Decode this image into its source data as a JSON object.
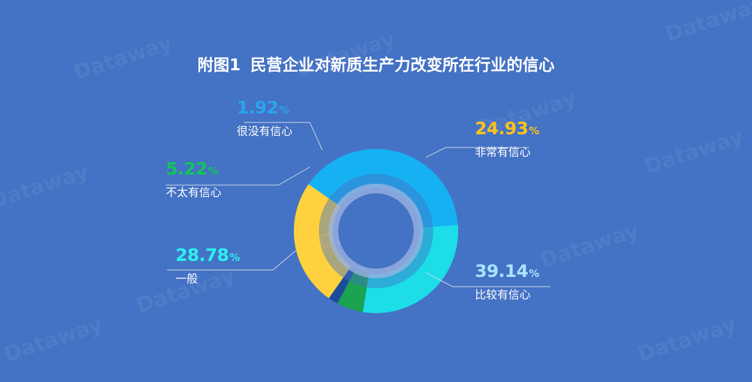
{
  "title_prefix": "附图1",
  "title_text": "民营企业对新质生产力改变所在行业的信心",
  "colors": {
    "background": "#4472c4",
    "leader": "#cfd9ec"
  },
  "chart_data": {
    "type": "pie",
    "variant": "donut",
    "title": "附图1 民营企业对新质生产力改变所在行业的信心",
    "unit": "%",
    "slices": [
      {
        "name": "非常有信心",
        "value": 24.93,
        "color": "#ffd13f",
        "label_color": "#ffc21a"
      },
      {
        "name": "比较有信心",
        "value": 39.14,
        "color": "#16b1f2",
        "label_color": "#a7e4ff"
      },
      {
        "name": "一般",
        "value": 28.78,
        "color": "#1cdde8",
        "label_color": "#2bf0f0"
      },
      {
        "name": "不太有信心",
        "value": 5.22,
        "color": "#1aa350",
        "label_color": "#14c45e"
      },
      {
        "name": "很没有信心",
        "value": 1.92,
        "color": "#1b4c9c",
        "label_color": "#2aa4ef"
      }
    ]
  }
}
